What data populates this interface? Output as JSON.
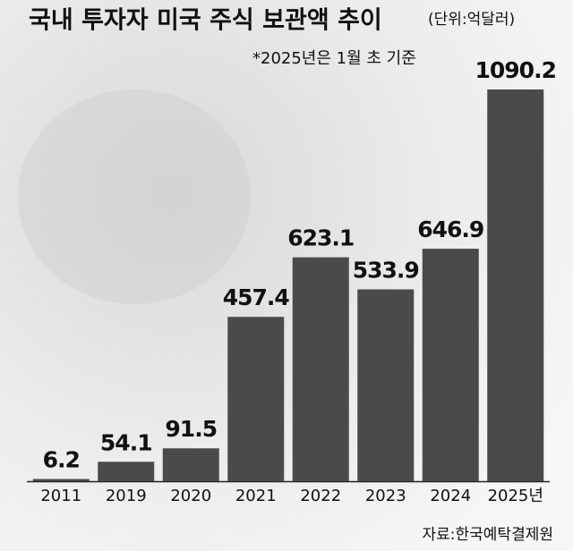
{
  "chart_data": {
    "type": "bar",
    "title": "국내 투자자 미국 주식 보관액 추이",
    "unit": "(단위:억달러)",
    "subtitle": "*2025년은 1월 초 기준",
    "source": "자료:한국예탁결제원",
    "categories": [
      "2011",
      "2019",
      "2020",
      "2021",
      "2022",
      "2023",
      "2024",
      "2025년"
    ],
    "values": [
      6.2,
      54.1,
      91.5,
      457.4,
      623.1,
      533.9,
      646.9,
      1090.2
    ],
    "color": "#4a4a4a"
  }
}
